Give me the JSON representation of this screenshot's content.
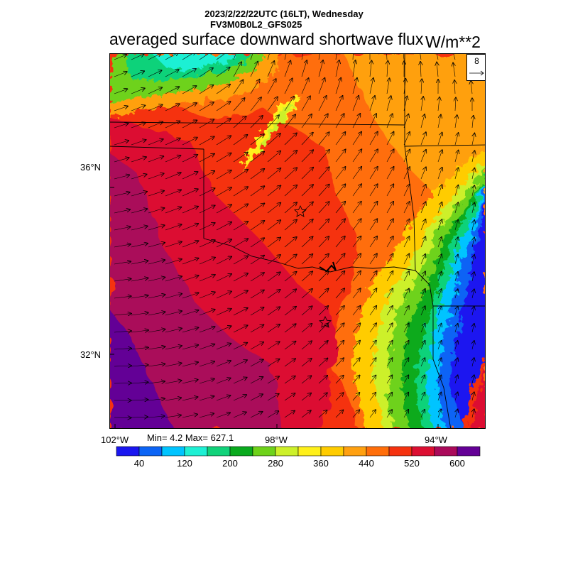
{
  "header": {
    "date_line": "2023/2/22/22UTC (16LT), Wednesday",
    "model_line": "FV3M0B0L2_GFS025",
    "title": "averaged surface downward shortwave flux",
    "units": "W/m**2"
  },
  "map": {
    "lat_labels": [
      "36°N",
      "32°N"
    ],
    "lon_labels": [
      "102°W",
      "98°W",
      "94°W"
    ],
    "field_min": "Min= 4.2 Max= 627.1",
    "reference_vector": {
      "label": "8",
      "icon": "arrow-right-icon"
    },
    "markers": [
      "star-icon",
      "star-icon"
    ]
  },
  "colorbar": {
    "colors": [
      "#1a16f0",
      "#0c64f5",
      "#00c4ff",
      "#1ef0d4",
      "#11d27a",
      "#0aaa1e",
      "#6ed21a",
      "#cdf02a",
      "#fff01a",
      "#ffcc00",
      "#ffa010",
      "#ff6e0a",
      "#f5320f",
      "#dc0f32",
      "#aa0a5a",
      "#640096"
    ],
    "labels": [
      "40",
      "120",
      "200",
      "280",
      "360",
      "440",
      "520",
      "600"
    ]
  }
}
